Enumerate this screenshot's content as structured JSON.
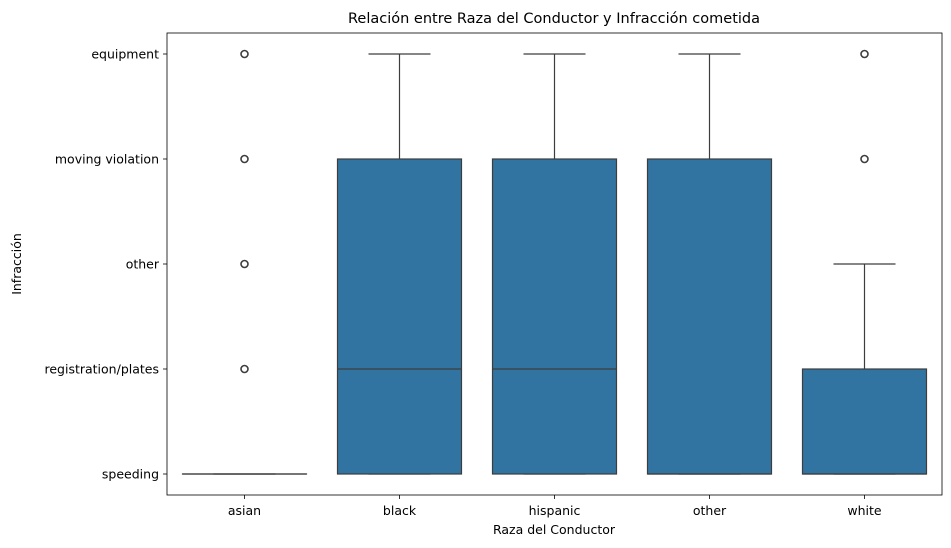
{
  "chart_data": {
    "type": "box",
    "title": "Relación entre Raza del Conductor y Infracción cometida",
    "xlabel": "Raza del Conductor",
    "ylabel": "Infracción",
    "categories": [
      "asian",
      "black",
      "hispanic",
      "other",
      "white"
    ],
    "y_categories": [
      "speeding",
      "registration/plates",
      "other",
      "moving violation",
      "equipment"
    ],
    "ylim": [
      -0.2,
      4.2
    ],
    "grid": false,
    "color": "#3274a1",
    "edge_color": "#3d3d3d",
    "boxes": [
      {
        "category": "asian",
        "whisker_low": "speeding",
        "q1": "speeding",
        "median": "speeding",
        "q3": "speeding",
        "whisker_high": "speeding",
        "outliers": [
          "registration/plates",
          "other",
          "moving violation",
          "equipment"
        ]
      },
      {
        "category": "black",
        "whisker_low": "speeding",
        "q1": "speeding",
        "median": "registration/plates",
        "q3": "moving violation",
        "whisker_high": "equipment",
        "outliers": []
      },
      {
        "category": "hispanic",
        "whisker_low": "speeding",
        "q1": "speeding",
        "median": "registration/plates",
        "q3": "moving violation",
        "whisker_high": "equipment",
        "outliers": []
      },
      {
        "category": "other",
        "whisker_low": "speeding",
        "q1": "speeding",
        "median": "speeding",
        "q3": "moving violation",
        "whisker_high": "equipment",
        "outliers": []
      },
      {
        "category": "white",
        "whisker_low": "speeding",
        "q1": "speeding",
        "median": "speeding",
        "q3": "registration/plates",
        "whisker_high": "other",
        "outliers": [
          "moving violation",
          "equipment"
        ]
      }
    ]
  }
}
